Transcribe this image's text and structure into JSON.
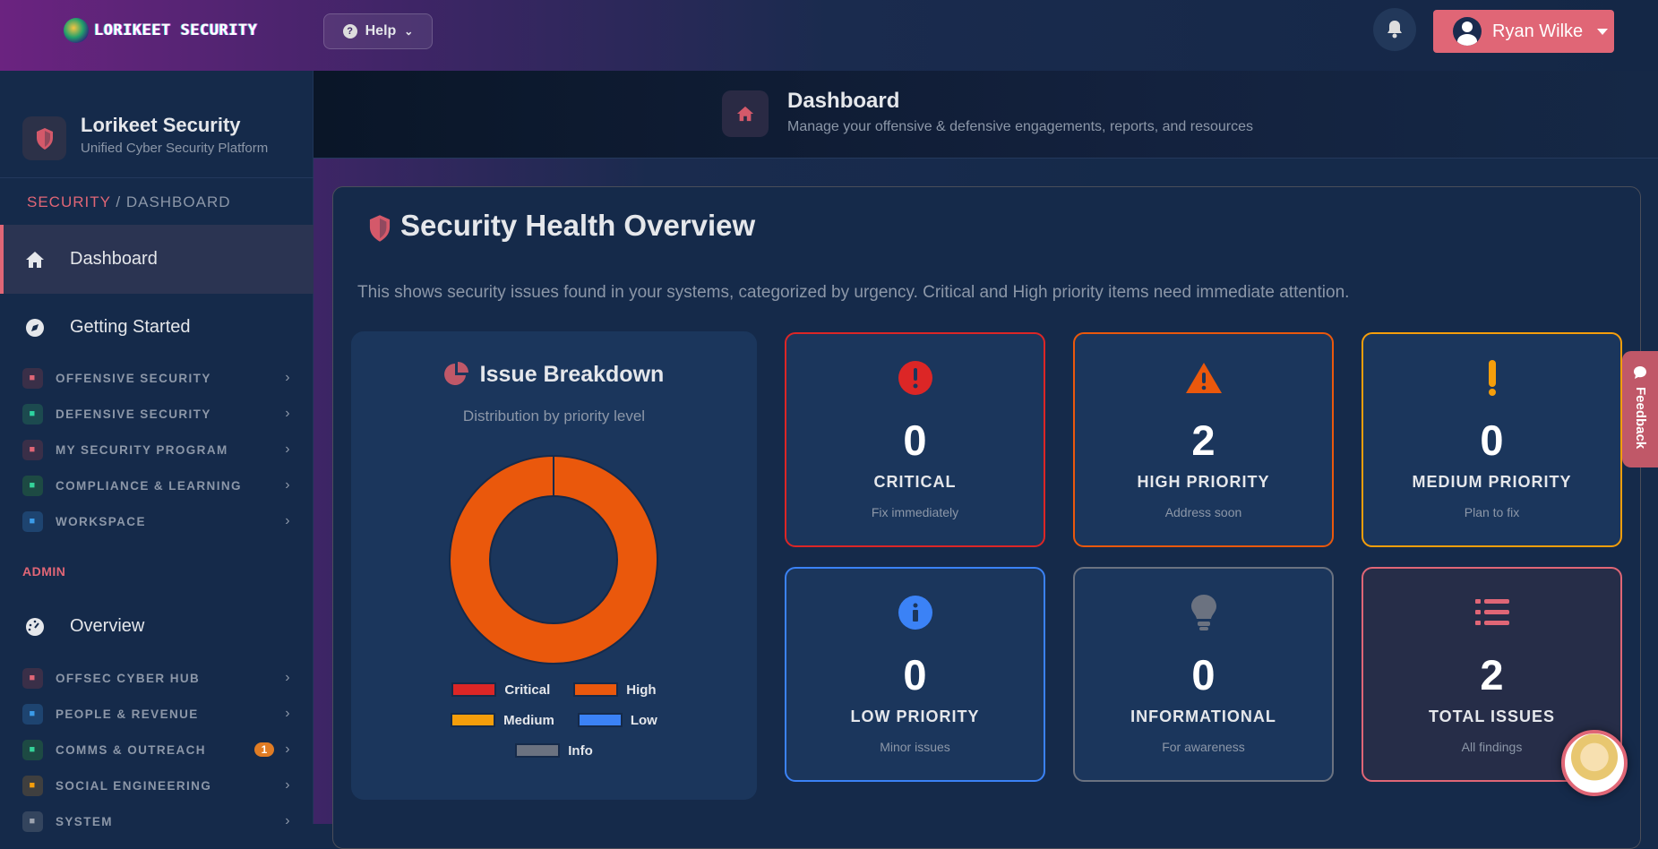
{
  "topbar": {
    "brand": "LORIKEET SECURITY",
    "help_label": "Help",
    "user_name": "Ryan Wilke"
  },
  "sidebar": {
    "brand_title": "Lorikeet Security",
    "brand_subtitle": "Unified Cyber Security Platform",
    "breadcrumb": {
      "section": "SECURITY",
      "separator": " / ",
      "page": "DASHBOARD"
    },
    "main_items": [
      {
        "label": "Dashboard",
        "icon": "home-icon",
        "active": true
      },
      {
        "label": "Getting Started",
        "icon": "compass-icon"
      }
    ],
    "groups": [
      {
        "label": "OFFENSIVE SECURITY",
        "icon": "shield-icon",
        "color": "#e06676",
        "bg": "#3a2f48"
      },
      {
        "label": "DEFENSIVE SECURITY",
        "icon": "shield-virus-icon",
        "color": "#2dd4a0",
        "bg": "#1c4a4f"
      },
      {
        "label": "MY SECURITY PROGRAM",
        "icon": "user-tie-icon",
        "color": "#e06676",
        "bg": "#3a2f48"
      },
      {
        "label": "COMPLIANCE & LEARNING",
        "icon": "clipboard-check-icon",
        "color": "#34d399",
        "bg": "#1d4a43"
      },
      {
        "label": "WORKSPACE",
        "icon": "briefcase-icon",
        "color": "#3b9be8",
        "bg": "#1e4470"
      }
    ],
    "admin_label": "ADMIN",
    "admin_main": {
      "label": "Overview",
      "icon": "gauge-icon"
    },
    "admin_groups": [
      {
        "label": "OFFSEC CYBER HUB",
        "icon": "crosshairs-icon",
        "color": "#e06676",
        "bg": "#3a2f48"
      },
      {
        "label": "PEOPLE & REVENUE",
        "icon": "users-gear-icon",
        "color": "#3b9be8",
        "bg": "#1e4470"
      },
      {
        "label": "COMMS & OUTREACH",
        "icon": "megaphone-icon",
        "color": "#34d399",
        "bg": "#1d4a43",
        "badge": "1"
      },
      {
        "label": "SOCIAL ENGINEERING",
        "icon": "graduation-cap-icon",
        "color": "#f59e0b",
        "bg": "#3f3f3f"
      },
      {
        "label": "SYSTEM",
        "icon": "gear-icon",
        "color": "#9ca3af",
        "bg": "#34455e"
      }
    ]
  },
  "page_header": {
    "title": "Dashboard",
    "subtitle": "Manage your offensive & defensive engagements, reports, and resources"
  },
  "overview": {
    "title": "Security Health Overview",
    "description": "This shows security issues found in your systems, categorized by urgency. Critical and High priority items need immediate attention.",
    "breakdown": {
      "title": "Issue Breakdown",
      "subtitle": "Distribution by priority level"
    },
    "cards": [
      {
        "count": "0",
        "label": "CRITICAL",
        "sub": "Fix immediately",
        "color": "#dc2626",
        "icon": "exclamation-circle-icon"
      },
      {
        "count": "2",
        "label": "HIGH PRIORITY",
        "sub": "Address soon",
        "color": "#ea580c",
        "icon": "warning-triangle-icon"
      },
      {
        "count": "0",
        "label": "MEDIUM PRIORITY",
        "sub": "Plan to fix",
        "color": "#f59e0b",
        "icon": "exclamation-icon"
      },
      {
        "count": "0",
        "label": "LOW PRIORITY",
        "sub": "Minor issues",
        "color": "#3b82f6",
        "icon": "info-circle-icon"
      },
      {
        "count": "0",
        "label": "INFORMATIONAL",
        "sub": "For awareness",
        "color": "#6b7280",
        "icon": "lightbulb-icon"
      },
      {
        "count": "2",
        "label": "TOTAL ISSUES",
        "sub": "All findings",
        "color": "#e06676",
        "icon": "list-icon"
      }
    ]
  },
  "chart_data": {
    "type": "pie",
    "donut": true,
    "categories": [
      "Critical",
      "High",
      "Medium",
      "Low",
      "Info"
    ],
    "values": [
      0,
      2,
      0,
      0,
      0
    ],
    "colors": [
      "#dc2626",
      "#ea580c",
      "#f59e0b",
      "#3b82f6",
      "#6b7280"
    ],
    "legend": "bottom"
  },
  "feedback_label": "Feedback"
}
